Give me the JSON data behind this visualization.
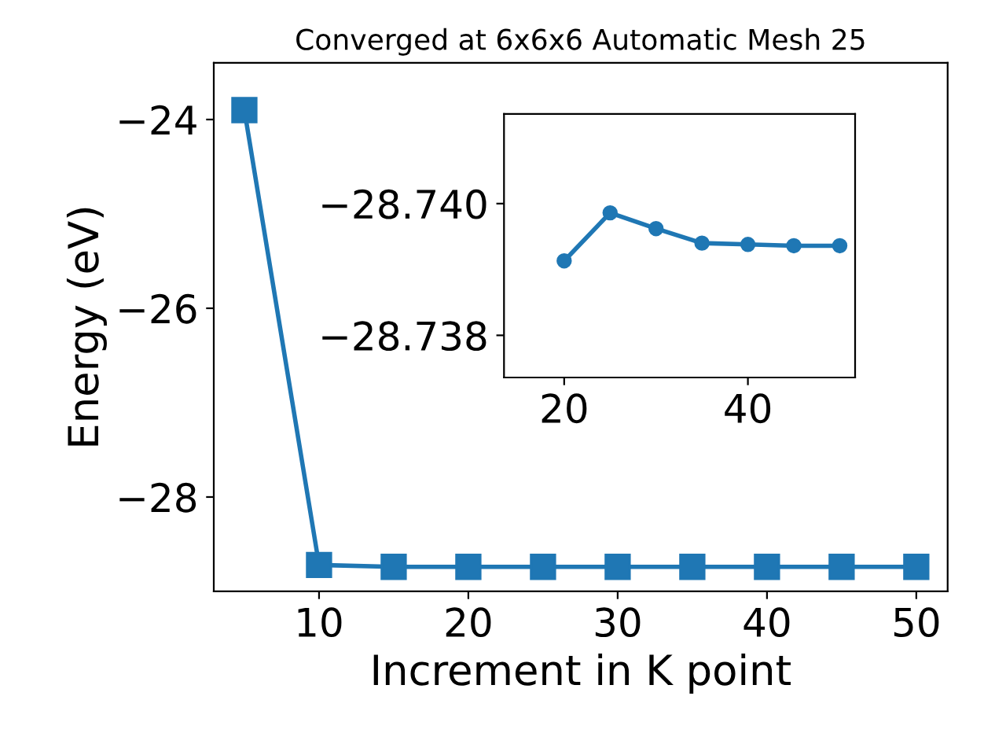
{
  "chart_data": [
    {
      "type": "line",
      "title": "Converged at 6x6x6 Automatic Mesh 25",
      "xlabel": "Increment in K point",
      "ylabel": "Energy (eV)",
      "x": [
        5,
        10,
        15,
        20,
        25,
        30,
        35,
        40,
        45,
        50
      ],
      "series": [
        {
          "color": "#1f77b4",
          "values": [
            -23.9,
            -28.72,
            -28.74,
            -28.74,
            -28.74,
            -28.74,
            -28.74,
            -28.74,
            -28.74,
            -28.74
          ]
        }
      ],
      "xlim": [
        2.95,
        52.1
      ],
      "xticks": [
        10,
        20,
        30,
        40,
        50
      ],
      "ylim": [
        -29.0,
        -23.4
      ],
      "yticks": [
        {
          "value": -28,
          "label": "−28"
        },
        {
          "value": -26,
          "label": "−26"
        },
        {
          "value": -24,
          "label": "−24"
        }
      ],
      "marker": "square",
      "line_style": "solid",
      "grid": false,
      "legend": false
    },
    {
      "type": "line",
      "x": [
        20,
        25,
        30,
        35,
        40,
        45,
        50
      ],
      "series": [
        {
          "color": "#1f77b4",
          "values": [
            -28.73913,
            -28.73986,
            -28.73962,
            -28.7394,
            -28.73938,
            -28.73936,
            -28.73936
          ]
        }
      ],
      "xlim": [
        13.45,
        51.67
      ],
      "xticks": [
        20,
        40
      ],
      "ylim": [
        -28.73736,
        -28.74136
      ],
      "yticks": [
        {
          "value": -28.74,
          "label": "−28.740"
        },
        {
          "value": -28.738,
          "label": "−28.738"
        }
      ],
      "marker": "circle",
      "line_style": "solid",
      "grid": false,
      "legend": false
    }
  ]
}
